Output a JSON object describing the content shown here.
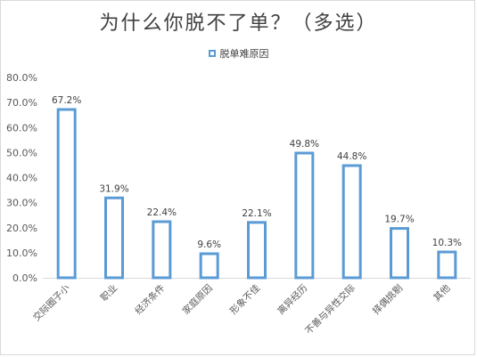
{
  "chart_data": {
    "type": "bar",
    "title": "为什么你脱不了单？（多选）",
    "legend": "脱单难原因",
    "legend_position": "top",
    "categories": [
      "交际圈子小",
      "职业",
      "经济条件",
      "家庭原因",
      "形象不佳",
      "离异经历",
      "不善与异性交际",
      "择偶挑剔",
      "其他"
    ],
    "values": [
      67.2,
      31.9,
      22.4,
      9.6,
      22.1,
      49.8,
      44.8,
      19.7,
      10.3
    ],
    "data_labels": [
      "67.2%",
      "31.9%",
      "22.4%",
      "9.6%",
      "22.1%",
      "49.8%",
      "44.8%",
      "19.7%",
      "10.3%"
    ],
    "ylim": [
      0,
      80
    ],
    "yticks": [
      "0.0%",
      "10.0%",
      "20.0%",
      "30.0%",
      "40.0%",
      "50.0%",
      "60.0%",
      "70.0%",
      "80.0%"
    ],
    "xlabel": "",
    "ylabel": "",
    "grid": false,
    "bar_color": "#5b9bd5"
  }
}
